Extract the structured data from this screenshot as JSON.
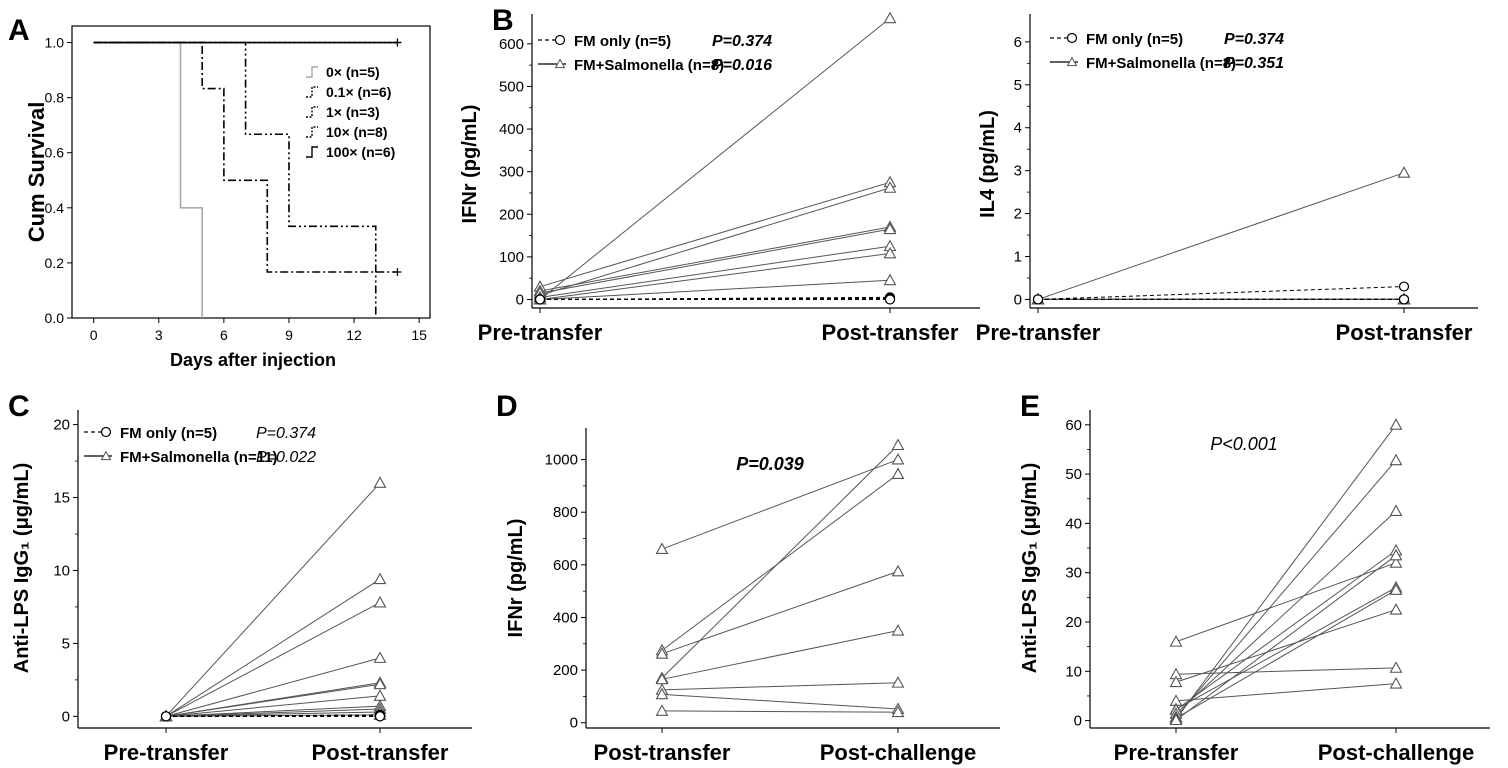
{
  "figure": {
    "background": "#ffffff",
    "ink": "#000000",
    "line_gray": "#555555"
  },
  "chart_data": [
    {
      "id": "A",
      "panel_label": "A",
      "type": "line",
      "subtype": "step-survival",
      "ylabel": "Cum Survival",
      "xlabel": "Days after injection",
      "xlim": [
        -1,
        15.5
      ],
      "ylim": [
        0,
        1.06
      ],
      "xticks": [
        0,
        3,
        6,
        9,
        12,
        15
      ],
      "yticks": [
        0.0,
        0.2,
        0.4,
        0.6,
        0.8,
        1.0
      ],
      "ytick_labels": [
        "0.0",
        "0.2",
        "0.4",
        "0.6",
        "0.8",
        "1.0"
      ],
      "series": [
        {
          "name": "0× (n=5)",
          "color": "#aaaaaa",
          "dash": "",
          "censor_end": false,
          "steps": [
            [
              0,
              1.0
            ],
            [
              4,
              0.4
            ],
            [
              5,
              0.0
            ]
          ],
          "end_x": 5
        },
        {
          "name": "0.1× (n=6)",
          "color": "#000000",
          "dash": "8 3 2 3",
          "censor_end": false,
          "steps": [
            [
              0,
              1.0
            ],
            [
              5,
              0.833
            ],
            [
              6,
              0.5
            ],
            [
              8,
              0.167
            ]
          ],
          "end_x": 14
        },
        {
          "name": "1× (n=3)",
          "color": "#000000",
          "dash": "8 3 2 3 2 3",
          "censor_end": false,
          "steps": [
            [
              0,
              1.0
            ],
            [
              7,
              0.667
            ],
            [
              9,
              0.333
            ],
            [
              13,
              0.0
            ]
          ],
          "end_x": 13
        },
        {
          "name": "10× (n=8)",
          "color": "#000000",
          "dash": "2 3",
          "censor_end": true,
          "steps": [
            [
              0,
              1.0
            ]
          ],
          "end_x": 14
        },
        {
          "name": "100× (n=6)",
          "color": "#000000",
          "dash": "",
          "censor_end": true,
          "steps": [
            [
              0,
              1.0
            ]
          ],
          "end_x": 14
        }
      ],
      "legend": [
        "0× (n=5)",
        "0.1× (n=6)",
        "1× (n=3)",
        "10× (n=8)",
        "100× (n=6)"
      ]
    },
    {
      "id": "B1",
      "panel_label": "B",
      "type": "line",
      "subtype": "paired",
      "ylabel": "IFNr (pg/mL)",
      "categories": [
        "Pre-transfer",
        "Post-transfer"
      ],
      "ylim": [
        -20,
        670
      ],
      "yticks": [
        0,
        100,
        200,
        300,
        400,
        500,
        600
      ],
      "ytick_labels": [
        "0",
        "100",
        "200",
        "300",
        "400",
        "500",
        "600"
      ],
      "legend": [
        {
          "label": "FM only (n=5)",
          "p": "P=0.374",
          "marker": "circle",
          "dash": "4 3"
        },
        {
          "label": "FM+Salmonella (n=8)",
          "p": "P=0.016",
          "marker": "triangle",
          "dash": ""
        }
      ],
      "series": [
        {
          "name": "FM only",
          "marker": "circle",
          "dash": "4 3",
          "color": "#000000",
          "pairs": [
            [
              0,
              5
            ],
            [
              0,
              3
            ],
            [
              0,
              2
            ],
            [
              0,
              1
            ],
            [
              0,
              0
            ]
          ]
        },
        {
          "name": "FM+Salmonella",
          "marker": "triangle",
          "dash": "",
          "color": "#555555",
          "pairs": [
            [
              0,
              660
            ],
            [
              30,
              275
            ],
            [
              10,
              262
            ],
            [
              20,
              170
            ],
            [
              15,
              165
            ],
            [
              5,
              125
            ],
            [
              0,
              108
            ],
            [
              0,
              45
            ]
          ]
        }
      ]
    },
    {
      "id": "B2",
      "panel_label": "",
      "type": "line",
      "subtype": "paired",
      "ylabel": "IL4 (pg/mL)",
      "categories": [
        "Pre-transfer",
        "Post-transfer"
      ],
      "ylim": [
        -0.2,
        6.65
      ],
      "yticks": [
        0,
        1,
        2,
        3,
        4,
        5,
        6
      ],
      "ytick_labels": [
        "0",
        "1",
        "2",
        "3",
        "4",
        "5",
        "6"
      ],
      "legend": [
        {
          "label": "FM only (n=5)",
          "p": "P=0.374",
          "marker": "circle",
          "dash": "4 3"
        },
        {
          "label": "FM+Salmonella (n=8)",
          "p": "P=0.351",
          "marker": "triangle",
          "dash": ""
        }
      ],
      "series": [
        {
          "name": "FM only",
          "marker": "circle",
          "dash": "4 3",
          "color": "#000000",
          "pairs": [
            [
              0,
              0.3
            ],
            [
              0,
              0
            ],
            [
              0,
              0
            ],
            [
              0,
              0
            ],
            [
              0,
              0
            ]
          ]
        },
        {
          "name": "FM+Salmonella",
          "marker": "triangle",
          "dash": "",
          "color": "#555555",
          "pairs": [
            [
              0,
              2.95
            ],
            [
              0,
              0
            ],
            [
              0,
              0
            ],
            [
              0,
              0
            ],
            [
              0,
              0
            ],
            [
              0,
              0
            ],
            [
              0,
              0
            ],
            [
              0,
              0
            ]
          ]
        }
      ]
    },
    {
      "id": "C",
      "panel_label": "C",
      "type": "line",
      "subtype": "paired",
      "ylabel": "Anti-LPS IgG₁ (μg/mL)",
      "categories": [
        "Pre-transfer",
        "Post-transfer"
      ],
      "ylim": [
        -0.8,
        21
      ],
      "yticks": [
        0,
        5,
        10,
        15,
        20
      ],
      "ytick_labels": [
        "0",
        "5",
        "10",
        "15",
        "20"
      ],
      "legend": [
        {
          "label": "FM only (n=5)",
          "p": "P=0.374",
          "marker": "circle",
          "dash": "4 3"
        },
        {
          "label": "FM+Salmonella (n=11)",
          "p": "P=0.022",
          "marker": "triangle",
          "dash": ""
        }
      ],
      "series": [
        {
          "name": "FM only",
          "marker": "circle",
          "dash": "4 3",
          "color": "#000000",
          "pairs": [
            [
              0,
              0.1
            ],
            [
              0,
              0.05
            ],
            [
              0,
              0
            ],
            [
              0,
              0
            ],
            [
              0,
              0
            ]
          ]
        },
        {
          "name": "FM+Salmonella",
          "marker": "triangle",
          "dash": "",
          "color": "#555555",
          "pairs": [
            [
              0,
              16.0
            ],
            [
              0,
              9.4
            ],
            [
              0,
              7.8
            ],
            [
              0,
              4.0
            ],
            [
              0,
              2.3
            ],
            [
              0,
              2.2
            ],
            [
              0,
              1.4
            ],
            [
              0,
              0.7
            ],
            [
              0,
              0.5
            ],
            [
              0,
              0.3
            ],
            [
              0,
              0.1
            ]
          ]
        }
      ]
    },
    {
      "id": "D",
      "panel_label": "D",
      "type": "line",
      "subtype": "paired",
      "ylabel": "IFNr (pg/mL)",
      "categories": [
        "Post-transfer",
        "Post-challenge"
      ],
      "ylim": [
        -20,
        1120
      ],
      "yticks": [
        0,
        200,
        400,
        600,
        800,
        1000
      ],
      "ytick_labels": [
        "0",
        "200",
        "400",
        "600",
        "800",
        "1000"
      ],
      "annotation": "P=0.039",
      "series": [
        {
          "name": "FM+Salmonella",
          "marker": "triangle",
          "dash": "",
          "color": "#555555",
          "pairs": [
            [
              660,
              1000
            ],
            [
              275,
              945
            ],
            [
              262,
              575
            ],
            [
              170,
              1055
            ],
            [
              165,
              350
            ],
            [
              125,
              152
            ],
            [
              108,
              52
            ],
            [
              45,
              40
            ]
          ]
        }
      ]
    },
    {
      "id": "E",
      "panel_label": "E",
      "type": "line",
      "subtype": "paired",
      "ylabel": "Anti-LPS IgG₁ (μg/mL)",
      "categories": [
        "Pre-transfer",
        "Post-challenge"
      ],
      "ylim": [
        -1.5,
        63
      ],
      "yticks": [
        0,
        10,
        20,
        30,
        40,
        50,
        60
      ],
      "ytick_labels": [
        "0",
        "10",
        "20",
        "30",
        "40",
        "50",
        "60"
      ],
      "annotation": "P<0.001",
      "series": [
        {
          "name": "FM+Salmonella",
          "marker": "triangle",
          "dash": "",
          "color": "#555555",
          "pairs": [
            [
              16.0,
              32.0
            ],
            [
              9.4,
              10.7
            ],
            [
              7.8,
              22.5
            ],
            [
              4.0,
              7.5
            ],
            [
              2.3,
              27.0
            ],
            [
              2.2,
              34.5
            ],
            [
              1.4,
              42.5
            ],
            [
              0.7,
              52.8
            ],
            [
              0.5,
              26.5
            ],
            [
              0.3,
              60.0
            ],
            [
              0.1,
              33.5
            ]
          ]
        }
      ]
    }
  ]
}
